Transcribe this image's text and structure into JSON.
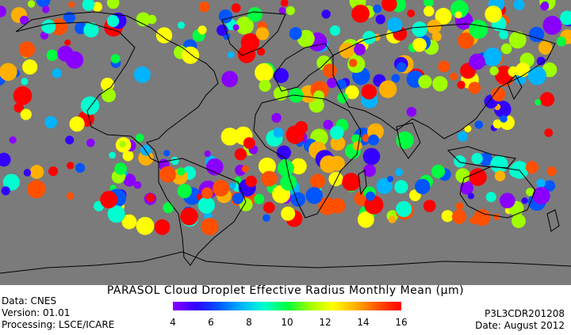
{
  "title": "PARASOL Cloud Droplet Effective Radius Monthly Mean (μm)",
  "meta_left": [
    "Data: CNES",
    "Version: 01.01",
    "Processing: LSCE/ICARE"
  ],
  "meta_right": [
    "P3L3CDR201208",
    "Date: August 2012"
  ],
  "colorbar": {
    "min": 4,
    "max": 16,
    "ticks": [
      "4",
      "6",
      "8",
      "10",
      "12",
      "14",
      "16"
    ],
    "colors": [
      "#8a00ff",
      "#3300ff",
      "#0055ff",
      "#00b4ff",
      "#00ffd0",
      "#00ff40",
      "#a0ff00",
      "#ffff00",
      "#ffb000",
      "#ff5000",
      "#ff0000"
    ]
  },
  "colors": {
    "ocean_no_data": "#7b7b7b",
    "coastline": "#000000"
  }
}
